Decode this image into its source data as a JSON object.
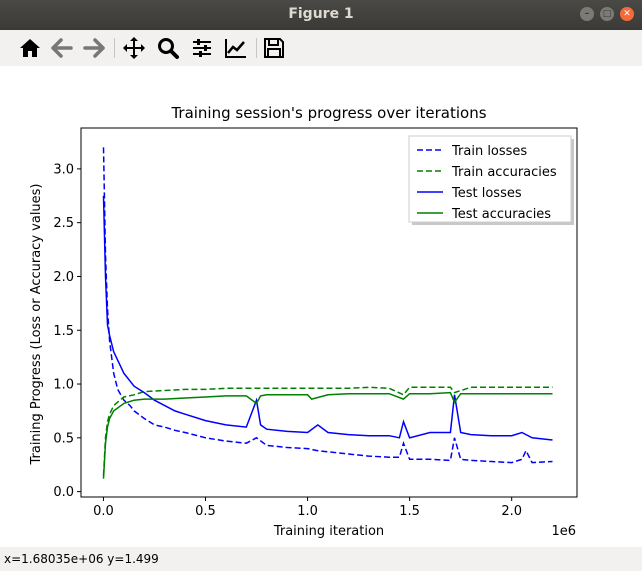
{
  "window": {
    "title": "Figure 1"
  },
  "toolbar": {
    "buttons": [
      {
        "name": "home-button",
        "icon": "home-icon"
      },
      {
        "name": "back-button",
        "icon": "arrow-left-icon"
      },
      {
        "name": "forward-button",
        "icon": "arrow-right-icon"
      },
      {
        "name": "pan-button",
        "icon": "move-icon"
      },
      {
        "name": "zoom-button",
        "icon": "magnifier-icon"
      },
      {
        "name": "configure-subplots-button",
        "icon": "sliders-icon"
      },
      {
        "name": "edit-axis-button",
        "icon": "line-chart-icon"
      },
      {
        "name": "save-button",
        "icon": "floppy-disk-icon"
      }
    ]
  },
  "status": {
    "coords": "x=1.68035e+06  y=1.499"
  },
  "chart_data": {
    "type": "line",
    "title": "Training session's progress over iterations",
    "xlabel": "Training iteration",
    "ylabel": "Training Progress (Loss or Accuracy values)",
    "x_offset_label": "1e6",
    "xlim": [
      -0.11,
      2.32
    ],
    "ylim": [
      -0.05,
      3.38
    ],
    "xticks": [
      0.0,
      0.5,
      1.0,
      1.5,
      2.0
    ],
    "xtick_labels": [
      "0.0",
      "0.5",
      "1.0",
      "1.5",
      "2.0"
    ],
    "yticks": [
      0.0,
      0.5,
      1.0,
      1.5,
      2.0,
      2.5,
      3.0
    ],
    "ytick_labels": [
      "0.0",
      "0.5",
      "1.0",
      "1.5",
      "2.0",
      "2.5",
      "3.0"
    ],
    "grid": false,
    "legend_position": "top-right",
    "colors": {
      "losses": "#0000ff",
      "accuracies": "#008000"
    },
    "series": [
      {
        "name": "Train losses",
        "color": "#0000ff",
        "style": "dashed",
        "x": [
          0.0,
          0.005,
          0.01,
          0.02,
          0.03,
          0.05,
          0.07,
          0.1,
          0.13,
          0.15,
          0.2,
          0.25,
          0.3,
          0.35,
          0.4,
          0.5,
          0.6,
          0.7,
          0.75,
          0.8,
          0.9,
          1.0,
          1.05,
          1.1,
          1.2,
          1.3,
          1.4,
          1.45,
          1.47,
          1.5,
          1.6,
          1.7,
          1.72,
          1.75,
          1.8,
          1.9,
          2.0,
          2.05,
          2.07,
          2.1,
          2.2
        ],
        "y": [
          3.2,
          2.7,
          2.2,
          1.7,
          1.4,
          1.1,
          0.95,
          0.85,
          0.8,
          0.75,
          0.68,
          0.62,
          0.6,
          0.57,
          0.55,
          0.5,
          0.47,
          0.45,
          0.5,
          0.43,
          0.41,
          0.4,
          0.38,
          0.37,
          0.35,
          0.33,
          0.32,
          0.32,
          0.45,
          0.3,
          0.3,
          0.29,
          0.5,
          0.3,
          0.29,
          0.28,
          0.27,
          0.3,
          0.38,
          0.27,
          0.28
        ]
      },
      {
        "name": "Train accuracies",
        "color": "#008000",
        "style": "dashed",
        "x": [
          0.0,
          0.01,
          0.02,
          0.03,
          0.05,
          0.08,
          0.1,
          0.15,
          0.2,
          0.3,
          0.4,
          0.5,
          0.6,
          0.7,
          0.8,
          0.9,
          1.0,
          1.1,
          1.2,
          1.3,
          1.4,
          1.47,
          1.5,
          1.6,
          1.7,
          1.72,
          1.8,
          1.9,
          2.0,
          2.1,
          2.2
        ],
        "y": [
          0.15,
          0.5,
          0.65,
          0.72,
          0.8,
          0.85,
          0.88,
          0.9,
          0.93,
          0.94,
          0.95,
          0.95,
          0.96,
          0.96,
          0.96,
          0.96,
          0.96,
          0.96,
          0.96,
          0.97,
          0.96,
          0.9,
          0.97,
          0.97,
          0.97,
          0.92,
          0.97,
          0.97,
          0.97,
          0.97,
          0.97
        ]
      },
      {
        "name": "Test losses",
        "color": "#0000ff",
        "style": "solid",
        "x": [
          0.0,
          0.01,
          0.02,
          0.03,
          0.05,
          0.1,
          0.15,
          0.2,
          0.25,
          0.3,
          0.35,
          0.4,
          0.5,
          0.6,
          0.7,
          0.75,
          0.77,
          0.8,
          0.9,
          1.0,
          1.05,
          1.1,
          1.2,
          1.3,
          1.4,
          1.45,
          1.47,
          1.5,
          1.6,
          1.7,
          1.72,
          1.75,
          1.8,
          1.9,
          2.0,
          2.05,
          2.1,
          2.2
        ],
        "y": [
          2.75,
          2.0,
          1.55,
          1.45,
          1.3,
          1.1,
          0.98,
          0.92,
          0.85,
          0.8,
          0.75,
          0.72,
          0.66,
          0.62,
          0.6,
          0.85,
          0.62,
          0.58,
          0.56,
          0.55,
          0.62,
          0.55,
          0.53,
          0.52,
          0.52,
          0.5,
          0.65,
          0.5,
          0.55,
          0.55,
          0.9,
          0.55,
          0.53,
          0.52,
          0.52,
          0.55,
          0.5,
          0.48
        ]
      },
      {
        "name": "Test accuracies",
        "color": "#008000",
        "style": "solid",
        "x": [
          0.0,
          0.01,
          0.02,
          0.03,
          0.05,
          0.1,
          0.15,
          0.2,
          0.3,
          0.4,
          0.5,
          0.6,
          0.7,
          0.75,
          0.77,
          0.8,
          0.9,
          1.0,
          1.02,
          1.1,
          1.2,
          1.3,
          1.4,
          1.47,
          1.5,
          1.6,
          1.7,
          1.72,
          1.75,
          1.8,
          1.9,
          2.0,
          2.1,
          2.2
        ],
        "y": [
          0.12,
          0.45,
          0.6,
          0.68,
          0.75,
          0.82,
          0.85,
          0.86,
          0.86,
          0.87,
          0.88,
          0.89,
          0.89,
          0.82,
          0.89,
          0.9,
          0.9,
          0.9,
          0.86,
          0.9,
          0.91,
          0.91,
          0.91,
          0.86,
          0.91,
          0.91,
          0.92,
          0.83,
          0.91,
          0.91,
          0.91,
          0.91,
          0.91,
          0.91
        ]
      }
    ]
  }
}
